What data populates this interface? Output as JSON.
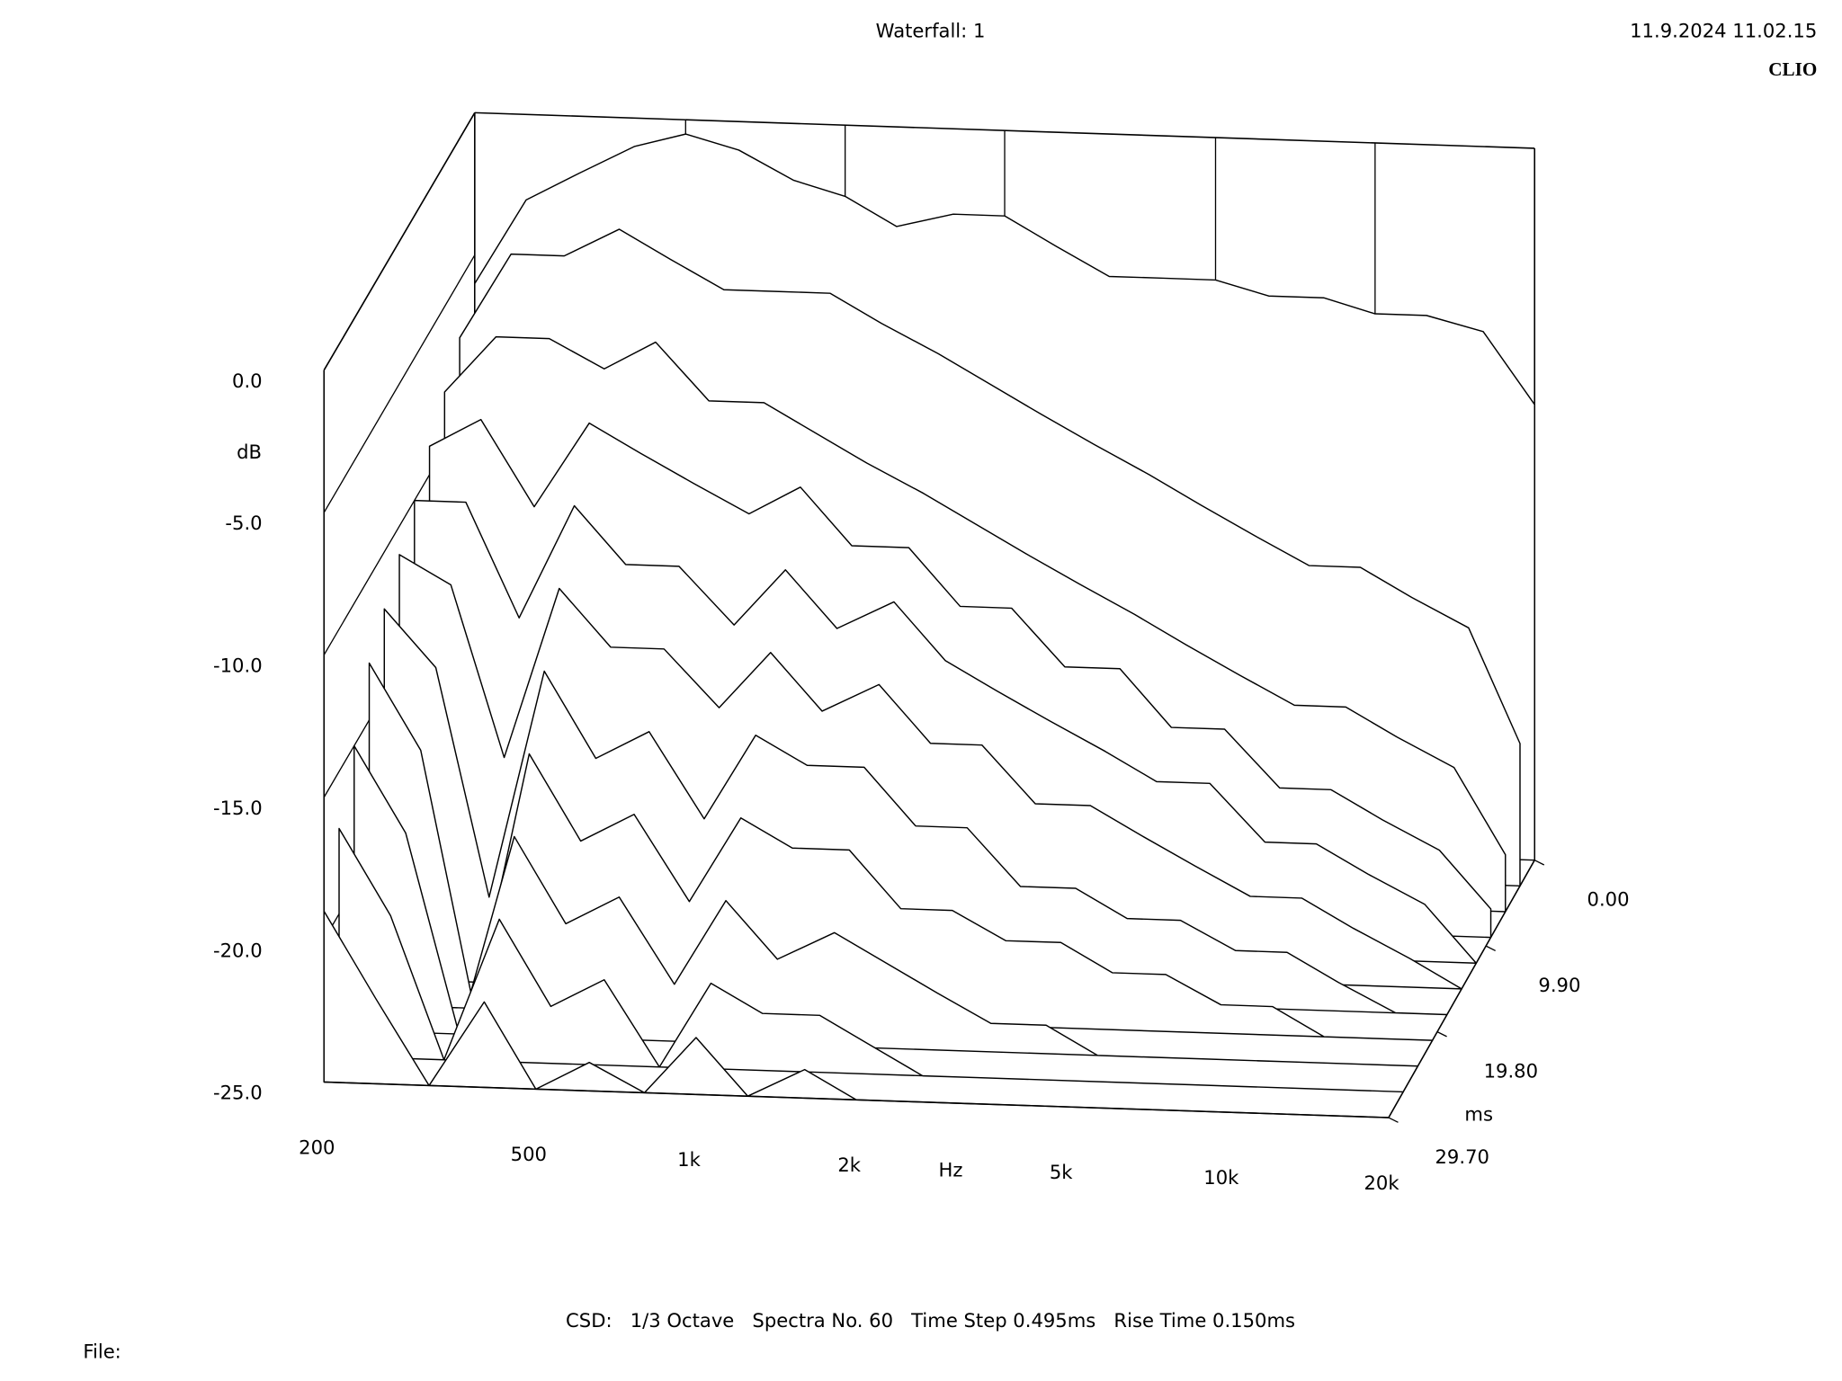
{
  "title": "Waterfall: 1",
  "timestamp": "11.9.2024 11.02.15",
  "brand": "CLIO",
  "footer": "CSD:   1/3 Octave   Spectra No. 60   Time Step 0.495ms   Rise Time 0.150ms",
  "file_label": "File:",
  "chart_data": {
    "type": "waterfall",
    "x_label": "Hz",
    "y_label": "dB",
    "z_label": "ms",
    "log_x": true,
    "x": [
      200,
      250,
      315,
      400,
      500,
      630,
      800,
      1000,
      1250,
      1600,
      2000,
      2500,
      3150,
      4000,
      5000,
      6300,
      8000,
      10000,
      12500,
      16000,
      20000
    ],
    "xlim": [
      200,
      20000
    ],
    "xticks": [
      200,
      500,
      {
        "value": 1000,
        "label": "1k"
      },
      {
        "value": 2000,
        "label": "2k"
      },
      {
        "value": 5000,
        "label": "5k"
      },
      {
        "value": 10000,
        "label": "10k"
      },
      {
        "value": 20000,
        "label": "20k"
      }
    ],
    "ylim": [
      -25,
      0
    ],
    "yticks": [
      {
        "value": 0,
        "label": "0.0"
      },
      {
        "value": -5,
        "label": "-5.0"
      },
      {
        "value": -10,
        "label": "-10.0"
      },
      {
        "value": -15,
        "label": "-15.0"
      },
      {
        "value": -20,
        "label": "-20.0"
      },
      {
        "value": -25,
        "label": "-25.0"
      }
    ],
    "zlim": [
      0,
      29.7
    ],
    "zticks": [
      {
        "value": 0,
        "label": "0.00"
      },
      {
        "value": 9.9,
        "label": "9.90"
      },
      {
        "value": 19.8,
        "label": "19.80"
      },
      {
        "value": 29.7,
        "label": "29.70"
      }
    ],
    "series": [
      {
        "time": 0,
        "values": [
          -6,
          -3,
          -2,
          -1,
          -0.5,
          -1,
          -2,
          -2.5,
          -3.5,
          -3,
          -3,
          -4,
          -5,
          -5,
          -5,
          -5.5,
          -5.5,
          -6,
          -6,
          -6.5,
          -9
        ]
      },
      {
        "time": 2.97,
        "values": [
          -7,
          -4,
          -4,
          -3,
          -4,
          -5,
          -5,
          -5,
          -6,
          -7,
          -8,
          -9,
          -10,
          -11,
          -12,
          -13,
          -14,
          -14,
          -15,
          -16,
          -20
        ]
      },
      {
        "time": 5.94,
        "values": [
          -8,
          -6,
          -6,
          -7,
          -6,
          -8,
          -8,
          -9,
          -10,
          -11,
          -12,
          -13,
          -14,
          -15,
          -16,
          -17,
          -18,
          -18,
          -19,
          -20,
          -23
        ]
      },
      {
        "time": 8.91,
        "values": [
          -9,
          -8,
          -11,
          -8,
          -9,
          -10,
          -11,
          -10,
          -12,
          -12,
          -14,
          -14,
          -16,
          -16,
          -18,
          -18,
          -20,
          -20,
          -21,
          -22,
          -24
        ]
      },
      {
        "time": 11.88,
        "values": [
          -10,
          -10,
          -14,
          -10,
          -12,
          -12,
          -14,
          -12,
          -14,
          -13,
          -15,
          -16,
          -17,
          -18,
          -19,
          -19,
          -21,
          -21,
          -22,
          -23,
          -25
        ]
      },
      {
        "time": 14.85,
        "values": [
          -11,
          -12,
          -18,
          -12,
          -14,
          -14,
          -16,
          -14,
          -16,
          -15,
          -17,
          -17,
          -19,
          -19,
          -20,
          -21,
          -22,
          -22,
          -23,
          -24,
          -25
        ]
      },
      {
        "time": 17.82,
        "values": [
          -12,
          -14,
          -22,
          -14,
          -17,
          -16,
          -19,
          -16,
          -17,
          -17,
          -19,
          -19,
          -21,
          -21,
          -22,
          -22,
          -23,
          -23,
          -24,
          -25,
          -25
        ]
      },
      {
        "time": 20.79,
        "values": [
          -13,
          -16,
          -25,
          -16,
          -19,
          -18,
          -21,
          -18,
          -19,
          -19,
          -21,
          -21,
          -22,
          -22,
          -23,
          -23,
          -24,
          -24,
          -25,
          -25,
          -25
        ]
      },
      {
        "time": 23.76,
        "values": [
          -15,
          -18,
          -25,
          -18,
          -21,
          -20,
          -23,
          -20,
          -22,
          -21,
          -22,
          -23,
          -24,
          -24,
          -25,
          -25,
          -25,
          -25,
          -25,
          -25,
          -25
        ]
      },
      {
        "time": 26.73,
        "values": [
          -17,
          -20,
          -25,
          -20,
          -23,
          -22,
          -25,
          -22,
          -23,
          -23,
          -24,
          -25,
          -25,
          -25,
          -25,
          -25,
          -25,
          -25,
          -25,
          -25,
          -25
        ]
      },
      {
        "time": 29.7,
        "values": [
          -19,
          -22,
          -25,
          -22,
          -25,
          -24,
          -25,
          -23,
          -25,
          -24,
          -25,
          -25,
          -25,
          -25,
          -25,
          -25,
          -25,
          -25,
          -25,
          -25,
          -25
        ]
      }
    ]
  }
}
